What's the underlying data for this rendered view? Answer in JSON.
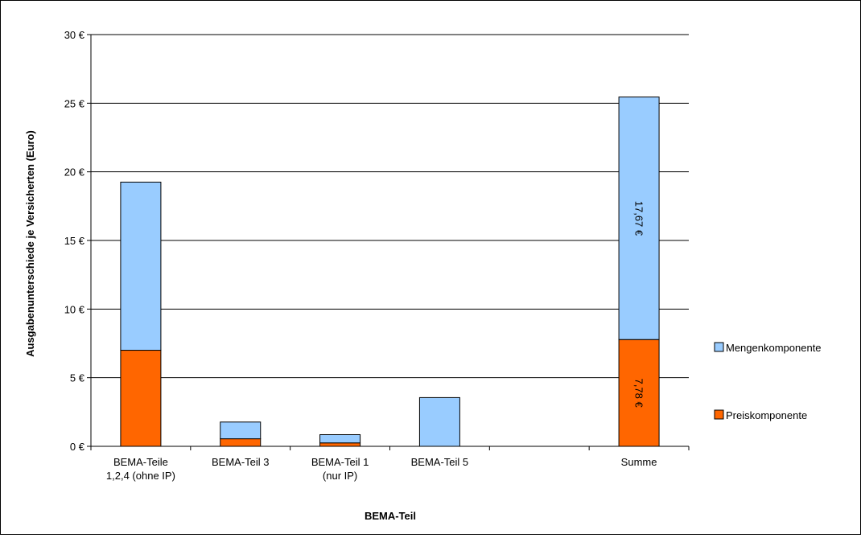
{
  "chart_data": {
    "type": "bar",
    "stacked": true,
    "title": "",
    "xlabel": "BEMA-Teil",
    "ylabel": "Ausgabenunterschiede je Versicherten (Euro)",
    "ylim": [
      0,
      30
    ],
    "yticks": [
      0,
      5,
      10,
      15,
      20,
      25,
      30
    ],
    "ytick_labels": [
      "0 €",
      "5 €",
      "10 €",
      "15 €",
      "20 €",
      "25 €",
      "30 €"
    ],
    "grid": true,
    "legend_position": "right",
    "categories": [
      [
        "BEMA-Teile",
        "1,2,4 (ohne IP)"
      ],
      [
        "BEMA-Teil 3"
      ],
      [
        "BEMA-Teil 1",
        "(nur IP)"
      ],
      [
        "BEMA-Teil 5"
      ],
      [],
      [
        "Summe"
      ]
    ],
    "series": [
      {
        "name": "Preiskomponente",
        "color": "#ff6600",
        "values": [
          7.0,
          0.55,
          0.25,
          0,
          null,
          7.78
        ],
        "data_labels": [
          "",
          "",
          "",
          "",
          "",
          "7,78 €"
        ]
      },
      {
        "name": "Mengenkomponente",
        "color": "#99ccff",
        "values": [
          12.25,
          1.22,
          0.6,
          3.55,
          null,
          17.67
        ],
        "data_labels": [
          "",
          "",
          "",
          "",
          "",
          "17,67 €"
        ]
      }
    ],
    "legend": [
      {
        "name": "Mengenkomponente",
        "color": "#99ccff"
      },
      {
        "name": "Preiskomponente",
        "color": "#ff6600"
      }
    ]
  }
}
